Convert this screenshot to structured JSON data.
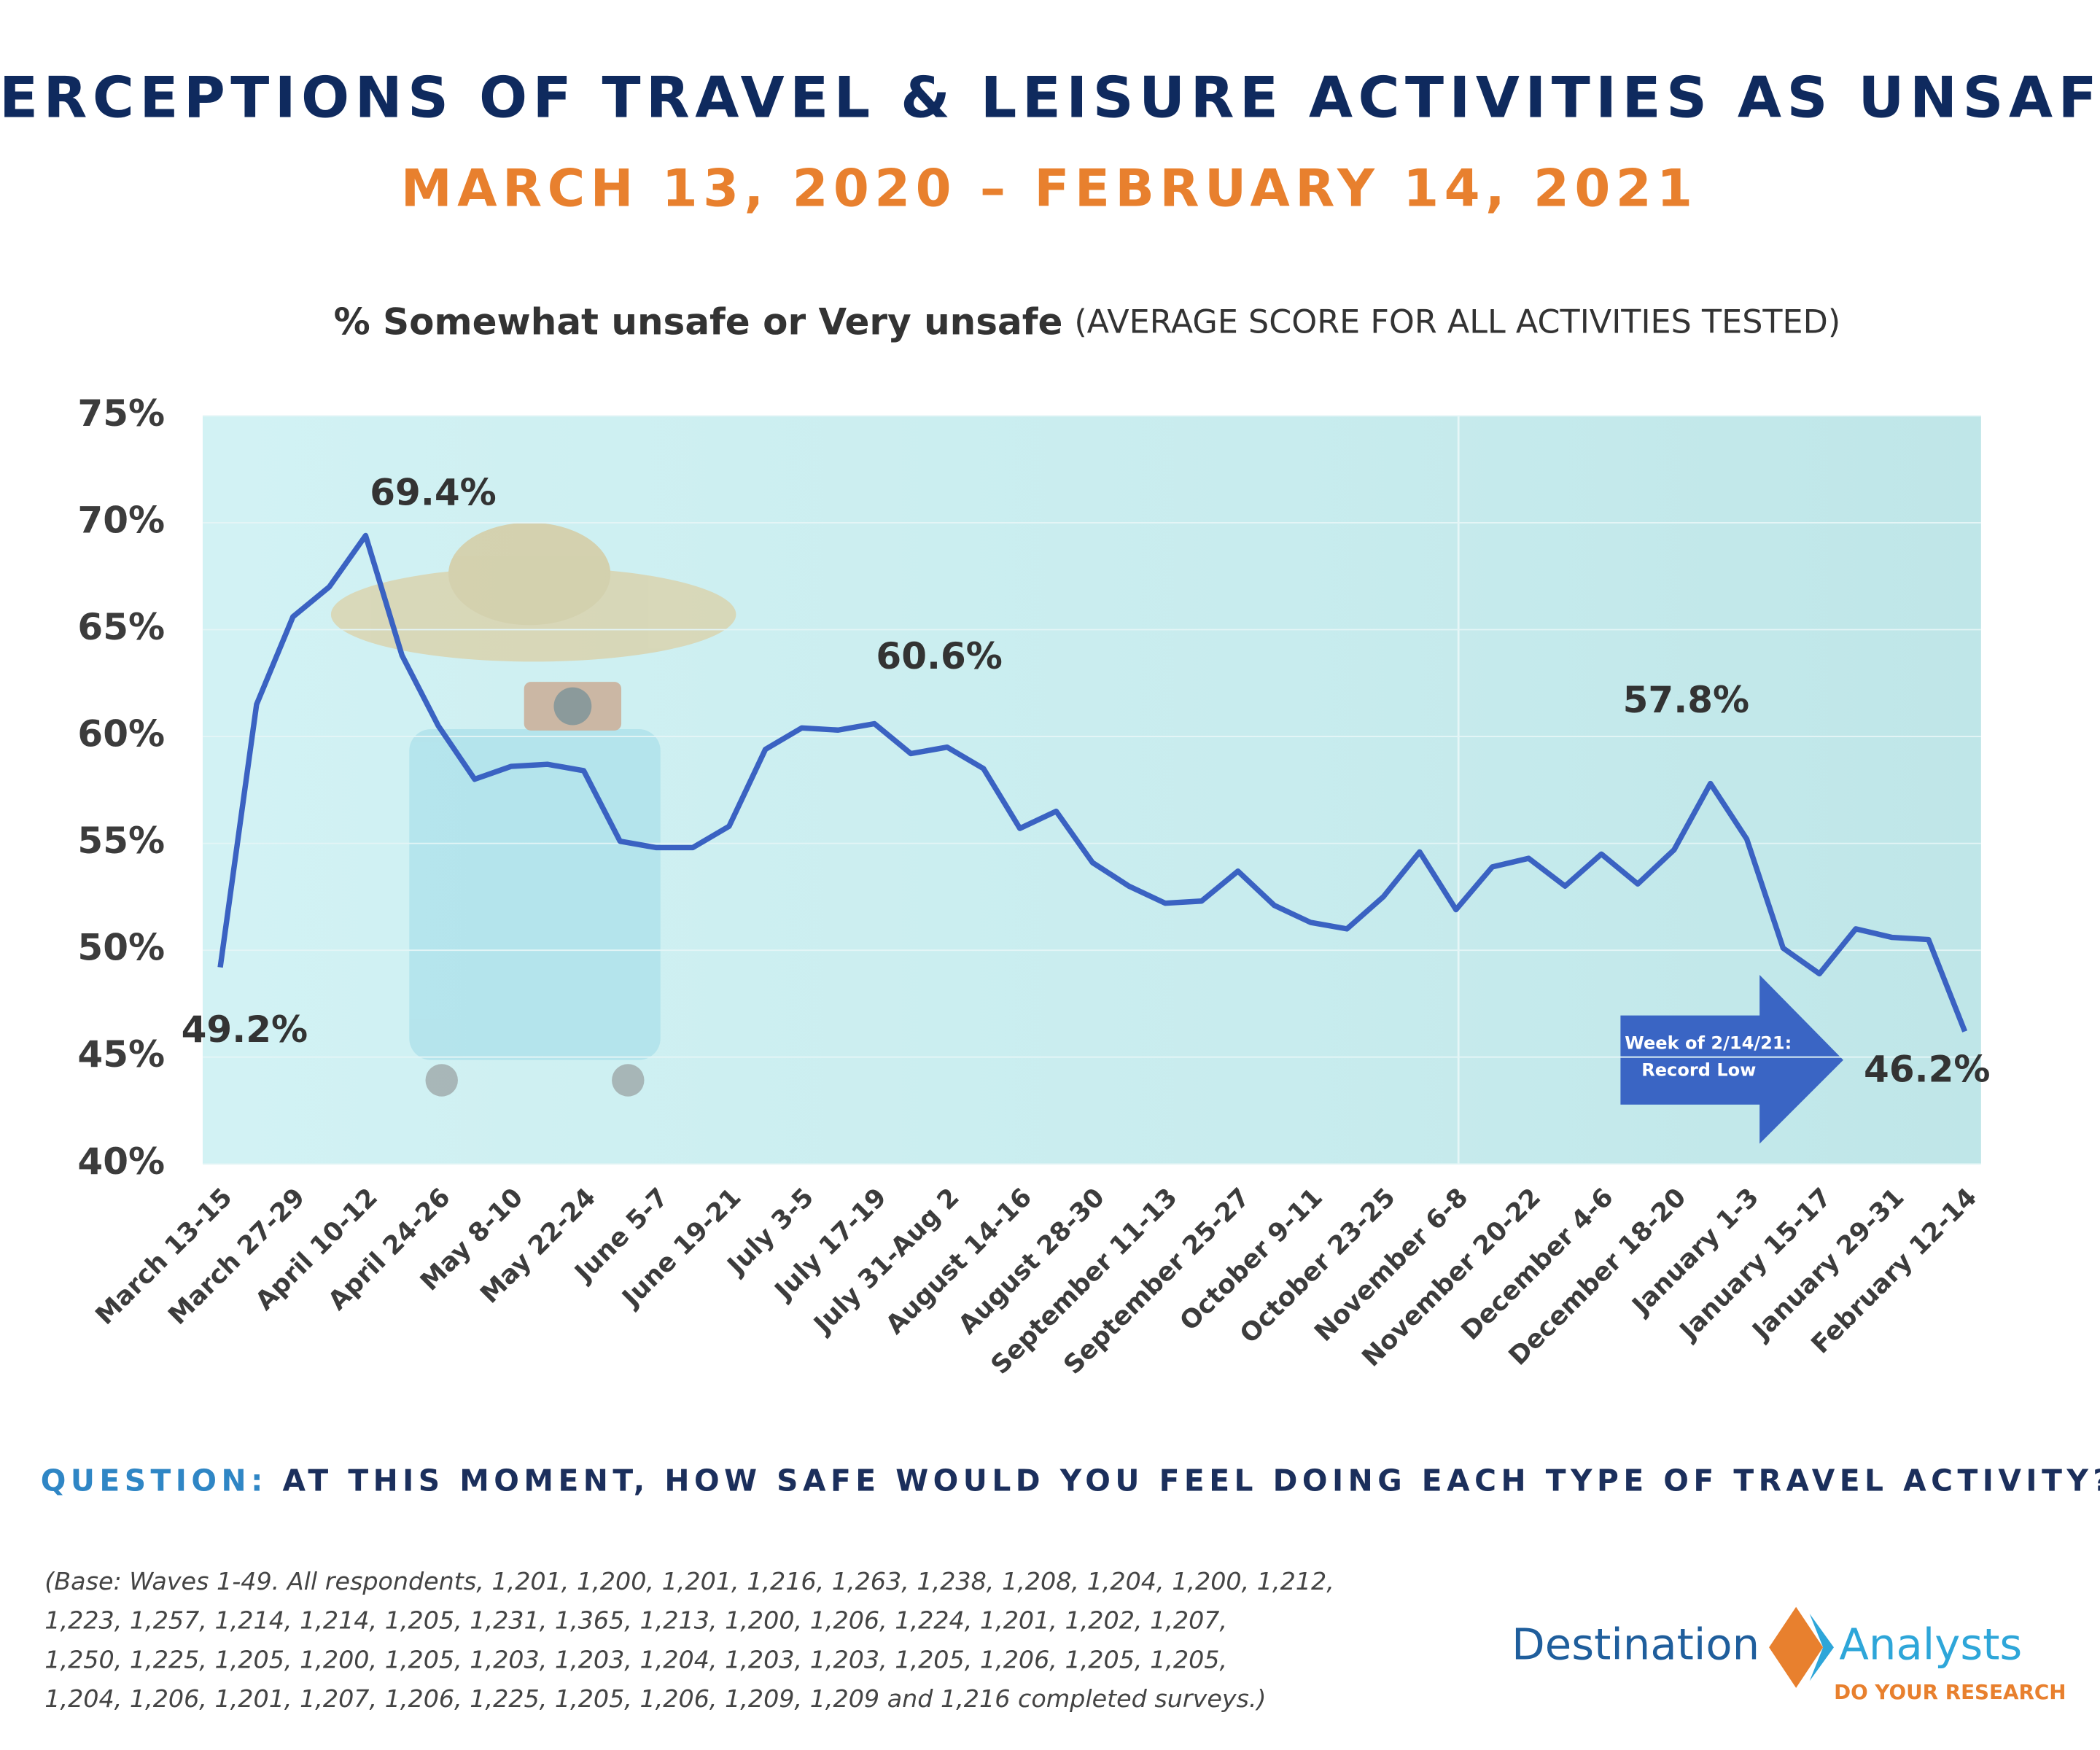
{
  "chart_data": {
    "type": "line",
    "title": "PERCEPTIONS OF TRAVEL & LEISURE ACTIVITIES AS UNSAFE",
    "subtitle": "MARCH 13, 2020 – FEBRUARY 14, 2021",
    "y_axis_label": "% Somewhat unsafe or Very unsafe",
    "y_axis_note": "(AVERAGE SCORE FOR ALL ACTIVITIES TESTED)",
    "categories": [
      "March 13-15",
      null,
      "March 27-29",
      null,
      "April 10-12",
      null,
      "April 24-26",
      null,
      "May 8-10",
      null,
      "May 22-24",
      null,
      "June 5-7",
      null,
      "June 19-21",
      null,
      "July 3-5",
      null,
      "July 17-19",
      null,
      "July 31-Aug 2",
      null,
      "August 14-16",
      null,
      "August 28-30",
      null,
      "September 11-13",
      null,
      "September 25-27",
      null,
      "October 9-11",
      null,
      "October 23-25",
      null,
      "November 6-8",
      null,
      "November 20-22",
      null,
      "December  4-6",
      null,
      "December 18-20",
      null,
      "January 1-3",
      null,
      "January 15-17",
      null,
      "January 29-31",
      null,
      "February 12-14"
    ],
    "series": [
      {
        "name": "% Somewhat unsafe or Very unsafe",
        "color": "#3a62c2",
        "values": [
          49.2,
          61.5,
          65.6,
          67.0,
          69.4,
          63.8,
          60.5,
          58.0,
          58.6,
          58.7,
          58.4,
          55.1,
          54.8,
          54.8,
          55.8,
          59.4,
          60.4,
          60.3,
          60.6,
          59.2,
          59.5,
          58.5,
          55.7,
          56.5,
          54.1,
          53.0,
          52.2,
          52.3,
          53.7,
          52.1,
          51.3,
          51.0,
          52.5,
          54.6,
          51.9,
          53.9,
          54.3,
          53.0,
          54.5,
          53.1,
          54.7,
          57.8,
          55.2,
          50.1,
          48.9,
          51.0,
          50.6,
          50.5,
          46.2
        ],
        "value_labels": [
          "49.2%",
          null,
          null,
          null,
          "69.4%",
          null,
          null,
          null,
          null,
          null,
          null,
          null,
          null,
          null,
          null,
          null,
          null,
          null,
          "60.6%",
          null,
          null,
          null,
          null,
          null,
          null,
          null,
          null,
          null,
          null,
          null,
          null,
          null,
          null,
          null,
          null,
          null,
          null,
          null,
          null,
          null,
          null,
          "57.8%",
          null,
          null,
          null,
          null,
          null,
          null,
          "46.2%"
        ]
      }
    ],
    "ylim": [
      40,
      75
    ],
    "yticks": [
      {
        "value": 40,
        "label": "40%"
      },
      {
        "value": 45,
        "label": "45%"
      },
      {
        "value": 50,
        "label": "50%"
      },
      {
        "value": 55,
        "label": "55%"
      },
      {
        "value": 60,
        "label": "60%"
      },
      {
        "value": 65,
        "label": "65%"
      },
      {
        "value": 70,
        "label": "70%"
      },
      {
        "value": 75,
        "label": "75%"
      }
    ],
    "grid": true,
    "annotation": [
      "Week of 2/14/21:",
      "Record Low"
    ],
    "question_label": "QUESTION:",
    "question": "AT THIS MOMENT, HOW SAFE WOULD YOU FEEL DOING EACH TYPE OF TRAVEL ACTIVITY?",
    "base_note": [
      "(Base: Waves 1-49. All respondents, 1,201, 1,200, 1,201, 1,216, 1,263, 1,238, 1,208, 1,204, 1,200, 1,212,",
      "1,223, 1,257, 1,214, 1,214, 1,205, 1,231, 1,365, 1,213, 1,200, 1,206, 1,224, 1,201, 1,202, 1,207,",
      "1,250, 1,225, 1,205, 1,200, 1,205, 1,203, 1,203, 1,204, 1,203, 1,203, 1,205, 1,206, 1,205, 1,205,",
      "1,204, 1,206, 1,201, 1,207, 1,206, 1,225, 1,205, 1,206, 1,209, 1,209 and 1,216 completed surveys.)"
    ],
    "logo": {
      "left": "Destination",
      "right": "Analysts",
      "tagline": "DO YOUR RESEARCH"
    }
  }
}
